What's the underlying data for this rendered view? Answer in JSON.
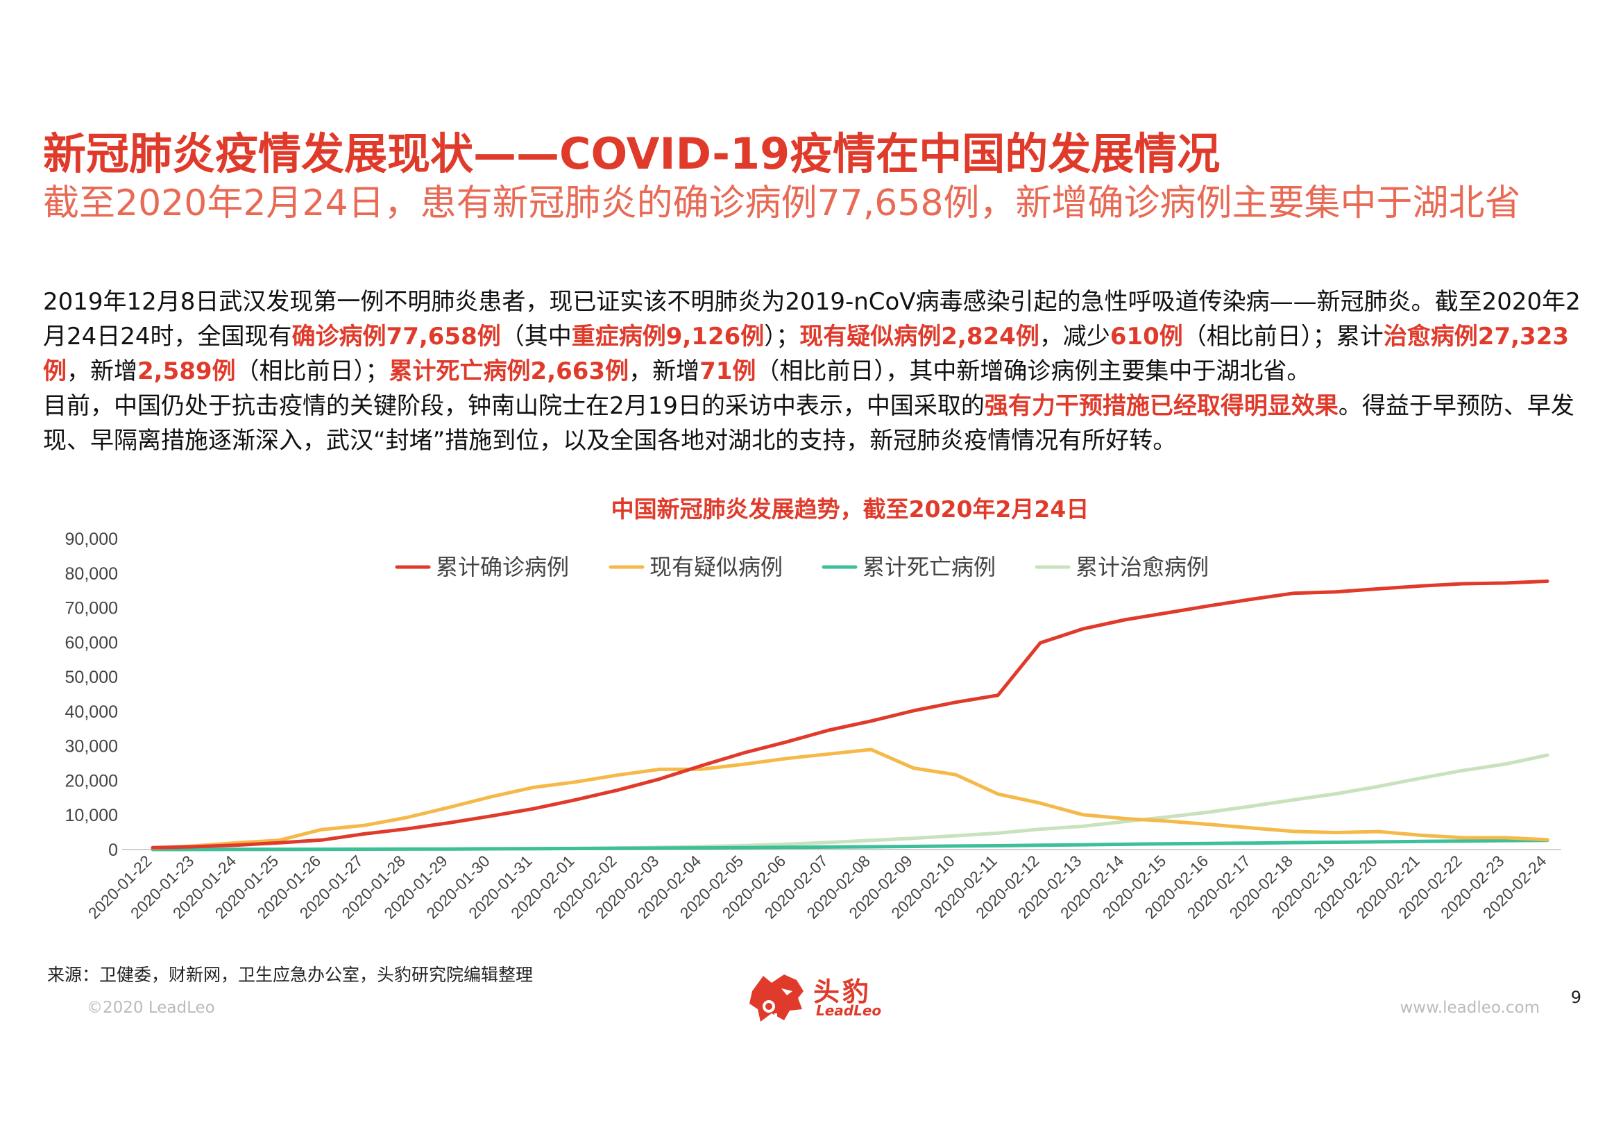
{
  "page": {
    "title": "新冠肺炎疫情发展现状——COVID-19疫情在中国的发展情况",
    "subtitle": "截至2020年2月24日，患有新冠肺炎的确诊病例77,658例，新增确诊病例主要集中于湖北省",
    "paragraphs": [
      [
        {
          "t": "2019年12月8日武汉发现第一例不明肺炎患者，现已证实该不明肺炎为2019-nCoV病毒感染引起的急性呼吸道传染病——新冠肺炎。截至2020年2月24日24时，全国现有"
        },
        {
          "t": "确诊病例77,658例",
          "h": true
        },
        {
          "t": "（其中"
        },
        {
          "t": "重症病例9,126例",
          "h": true
        },
        {
          "t": "）；"
        },
        {
          "t": "现有疑似病例2,824例",
          "h": true
        },
        {
          "t": "，减少"
        },
        {
          "t": "610例",
          "h": true
        },
        {
          "t": "（相比前日）；累计"
        },
        {
          "t": "治愈病例27,323例",
          "h": true
        },
        {
          "t": "，新增"
        },
        {
          "t": "2,589例",
          "h": true
        },
        {
          "t": "（相比前日）；"
        },
        {
          "t": "累计死亡病例2,663例",
          "h": true
        },
        {
          "t": "，新增"
        },
        {
          "t": "71例",
          "h": true
        },
        {
          "t": "（相比前日），其中新增确诊病例主要集中于湖北省。"
        }
      ],
      [
        {
          "t": "目前，中国仍处于抗击疫情的关键阶段，钟南山院士在2月19日的采访中表示，中国采取的"
        },
        {
          "t": "强有力干预措施已经取得明显效果",
          "h": true
        },
        {
          "t": "。得益于早预防、早发现、早隔离措施逐渐深入，武汉“封堵”措施到位，以及全国各地对湖北的支持，新冠肺炎疫情情况有所好转。"
        }
      ]
    ],
    "source": "来源：卫健委，财新网，卫生应急办公室，头豹研究院编辑整理",
    "copyright": "©2020 LeadLeo",
    "website": "www.leadleo.com",
    "page_number": "9",
    "logo": {
      "cn": "头豹",
      "en": "LeadLeo",
      "icon": "leopard-head-icon"
    },
    "colors": {
      "accent": "#e03a2b",
      "subtitle": "#e86a55"
    }
  },
  "chart_data": {
    "type": "line",
    "title": "中国新冠肺炎发展趋势，截至2020年2月24日",
    "xlabel": "",
    "ylabel": "",
    "ylim": [
      0,
      90000
    ],
    "yticks": [
      0,
      10000,
      20000,
      30000,
      40000,
      50000,
      60000,
      70000,
      80000,
      90000
    ],
    "ytick_labels": [
      "0",
      "10,000",
      "20,000",
      "30,000",
      "40,000",
      "50,000",
      "60,000",
      "70,000",
      "80,000",
      "90,000"
    ],
    "grid": false,
    "legend_position": "top-center",
    "x": [
      "2020-01-22",
      "2020-01-23",
      "2020-01-24",
      "2020-01-25",
      "2020-01-26",
      "2020-01-27",
      "2020-01-28",
      "2020-01-29",
      "2020-01-30",
      "2020-01-31",
      "2020-02-01",
      "2020-02-02",
      "2020-02-03",
      "2020-02-04",
      "2020-02-05",
      "2020-02-06",
      "2020-02-07",
      "2020-02-08",
      "2020-02-09",
      "2020-02-10",
      "2020-02-11",
      "2020-02-12",
      "2020-02-13",
      "2020-02-14",
      "2020-02-15",
      "2020-02-16",
      "2020-02-17",
      "2020-02-18",
      "2020-02-19",
      "2020-02-20",
      "2020-02-21",
      "2020-02-22",
      "2020-02-23",
      "2020-02-24"
    ],
    "series": [
      {
        "name": "累计确诊病例",
        "color": "#e03a2b",
        "values": [
          571,
          830,
          1287,
          1975,
          2744,
          4515,
          5974,
          7711,
          9692,
          11791,
          14380,
          17205,
          20438,
          24324,
          28018,
          31161,
          34546,
          37198,
          40171,
          42638,
          44653,
          59804,
          63851,
          66492,
          68500,
          70548,
          72436,
          74185,
          74576,
          75465,
          76288,
          76936,
          77150,
          77658
        ]
      },
      {
        "name": "现有疑似病例",
        "color": "#f5b94a",
        "values": [
          393,
          1072,
          1965,
          2684,
          5794,
          6973,
          9239,
          12167,
          15238,
          17988,
          19544,
          21558,
          23214,
          23260,
          24702,
          26359,
          27657,
          28942,
          23589,
          21675,
          16067,
          13435,
          10109,
          8969,
          8228,
          7264,
          6242,
          5248,
          4922,
          5206,
          4148,
          3434,
          3434,
          2824
        ]
      },
      {
        "name": "累计死亡病例",
        "color": "#3dbf9a",
        "values": [
          17,
          25,
          41,
          56,
          80,
          106,
          132,
          170,
          213,
          259,
          304,
          361,
          425,
          490,
          563,
          636,
          722,
          811,
          908,
          1016,
          1113,
          1259,
          1380,
          1523,
          1665,
          1770,
          1868,
          2004,
          2118,
          2236,
          2345,
          2442,
          2592,
          2663
        ]
      },
      {
        "name": "累计治愈病例",
        "color": "#c8e2bd",
        "values": [
          28,
          34,
          38,
          49,
          51,
          60,
          103,
          124,
          171,
          243,
          328,
          475,
          632,
          892,
          1153,
          1540,
          2050,
          2649,
          3281,
          3996,
          4740,
          5911,
          6723,
          8096,
          9419,
          10844,
          12552,
          14376,
          16155,
          18264,
          20659,
          22888,
          24734,
          27323
        ]
      }
    ]
  }
}
